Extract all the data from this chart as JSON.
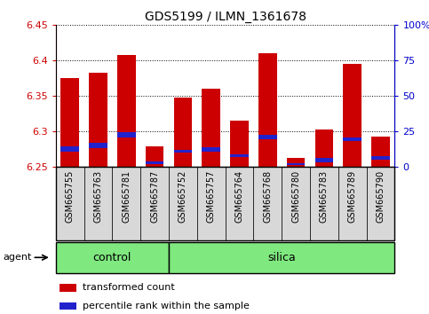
{
  "title": "GDS5199 / ILMN_1361678",
  "samples": [
    "GSM665755",
    "GSM665763",
    "GSM665781",
    "GSM665787",
    "GSM665752",
    "GSM665757",
    "GSM665764",
    "GSM665768",
    "GSM665780",
    "GSM665783",
    "GSM665789",
    "GSM665790"
  ],
  "groups": [
    "control",
    "control",
    "control",
    "control",
    "silica",
    "silica",
    "silica",
    "silica",
    "silica",
    "silica",
    "silica",
    "silica"
  ],
  "red_values": [
    6.375,
    6.383,
    6.408,
    6.278,
    6.347,
    6.36,
    6.315,
    6.41,
    6.262,
    6.302,
    6.395,
    6.292
  ],
  "blue_bottom": [
    6.271,
    6.276,
    6.291,
    6.253,
    6.269,
    6.271,
    6.263,
    6.289,
    6.252,
    6.256,
    6.286,
    6.259
  ],
  "blue_top": [
    6.279,
    6.284,
    6.298,
    6.257,
    6.274,
    6.277,
    6.267,
    6.295,
    6.255,
    6.262,
    6.291,
    6.264
  ],
  "ymin": 6.25,
  "ymax": 6.45,
  "yticks_left": [
    6.25,
    6.3,
    6.35,
    6.4,
    6.45
  ],
  "yticks_right_pct": [
    0,
    25,
    50,
    75,
    100
  ],
  "bar_color": "#cc0000",
  "blue_color": "#2222cc",
  "bg_color": "#ffffff",
  "plot_bg": "#ffffff",
  "xticklabel_bg": "#d8d8d8",
  "group_color": "#7fe87f",
  "legend_red_label": "transformed count",
  "legend_blue_label": "percentile rank within the sample",
  "agent_label": "agent",
  "control_label": "control",
  "silica_label": "silica",
  "bar_width": 0.65,
  "figsize": [
    4.83,
    3.54
  ],
  "dpi": 100,
  "n_control": 4,
  "n_silica": 8
}
